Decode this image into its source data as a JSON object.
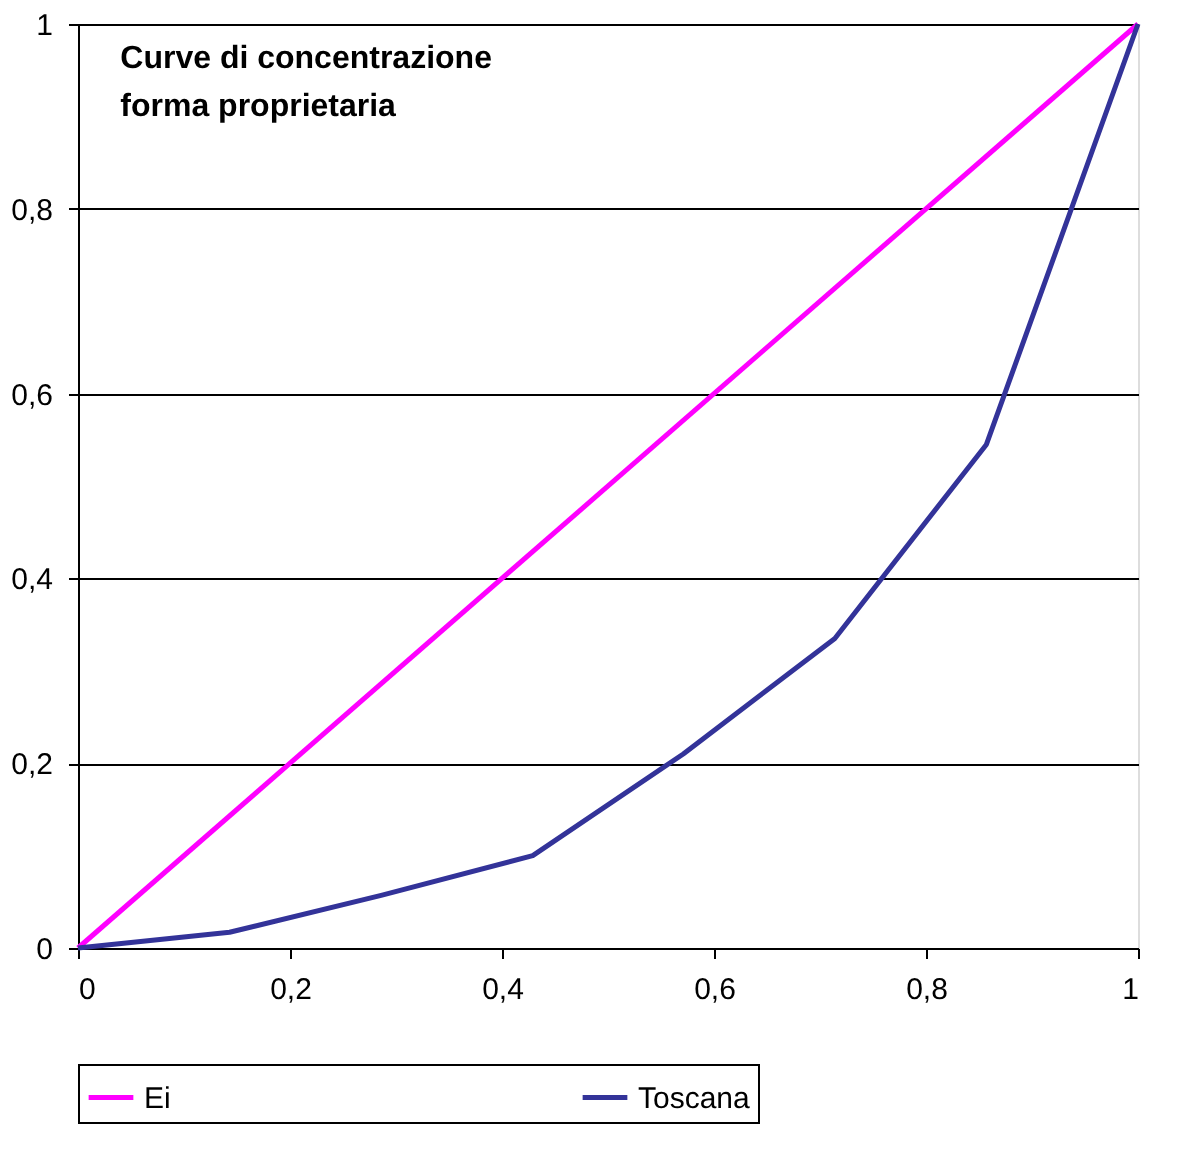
{
  "chart_data": {
    "type": "line",
    "title": "Curve di concentrazione\nforma proprietaria",
    "series": [
      {
        "name": "Ei",
        "color": "#ff00ff",
        "x": [
          0,
          1
        ],
        "values": [
          0,
          1
        ]
      },
      {
        "name": "Toscana",
        "color": "#333399",
        "x": [
          0,
          0.143,
          0.286,
          0.429,
          0.571,
          0.714,
          0.857,
          1
        ],
        "values": [
          0,
          0.017,
          0.057,
          0.1,
          0.21,
          0.335,
          0.545,
          1
        ]
      }
    ],
    "xlim": [
      0,
      1
    ],
    "ylim": [
      0,
      1
    ],
    "xticks": [
      0,
      {
        "value": 0.2,
        "label": "0,2"
      },
      {
        "value": 0.4,
        "label": "0,4"
      },
      {
        "value": 0.6,
        "label": "0,6"
      },
      {
        "value": 0.8,
        "label": "0,8"
      },
      1
    ],
    "yticks": [
      0,
      {
        "value": 0.2,
        "label": "0,2"
      },
      {
        "value": 0.4,
        "label": "0,4"
      },
      {
        "value": 0.6,
        "label": "0,6"
      },
      {
        "value": 0.8,
        "label": "0,8"
      },
      1
    ],
    "grid": "y",
    "legend": "bottom",
    "marker": "none",
    "line_style": "solid"
  }
}
